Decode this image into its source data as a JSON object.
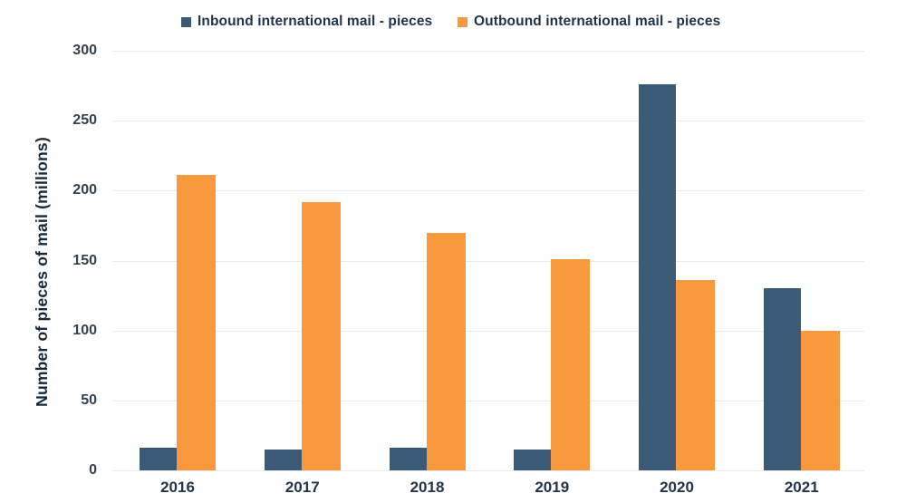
{
  "legend": {
    "position": "top"
  },
  "colors": {
    "inbound": "#3a5a75",
    "outbound": "#f8993e",
    "grid": "#ebebeb",
    "axis_text": "#33424f",
    "label_text": "#1e3347"
  },
  "chart_data": {
    "type": "bar",
    "title": "",
    "categories": [
      "2016",
      "2017",
      "2018",
      "2019",
      "2020",
      "2021"
    ],
    "series": [
      {
        "name": "Inbound international mail - pieces",
        "color": "#3a5a75",
        "values": [
          16,
          15,
          16,
          15,
          276,
          130
        ]
      },
      {
        "name": "Outbound international mail - pieces",
        "color": "#f8993e",
        "values": [
          211,
          192,
          170,
          151,
          136,
          100
        ]
      }
    ],
    "xlabel": "",
    "ylabel": "Number of pieces of mail (millions)",
    "ylim": [
      0,
      300
    ],
    "ytick_step": 50,
    "yticks": [
      0,
      50,
      100,
      150,
      200,
      250,
      300
    ],
    "grid": true,
    "legend_position": "top"
  }
}
